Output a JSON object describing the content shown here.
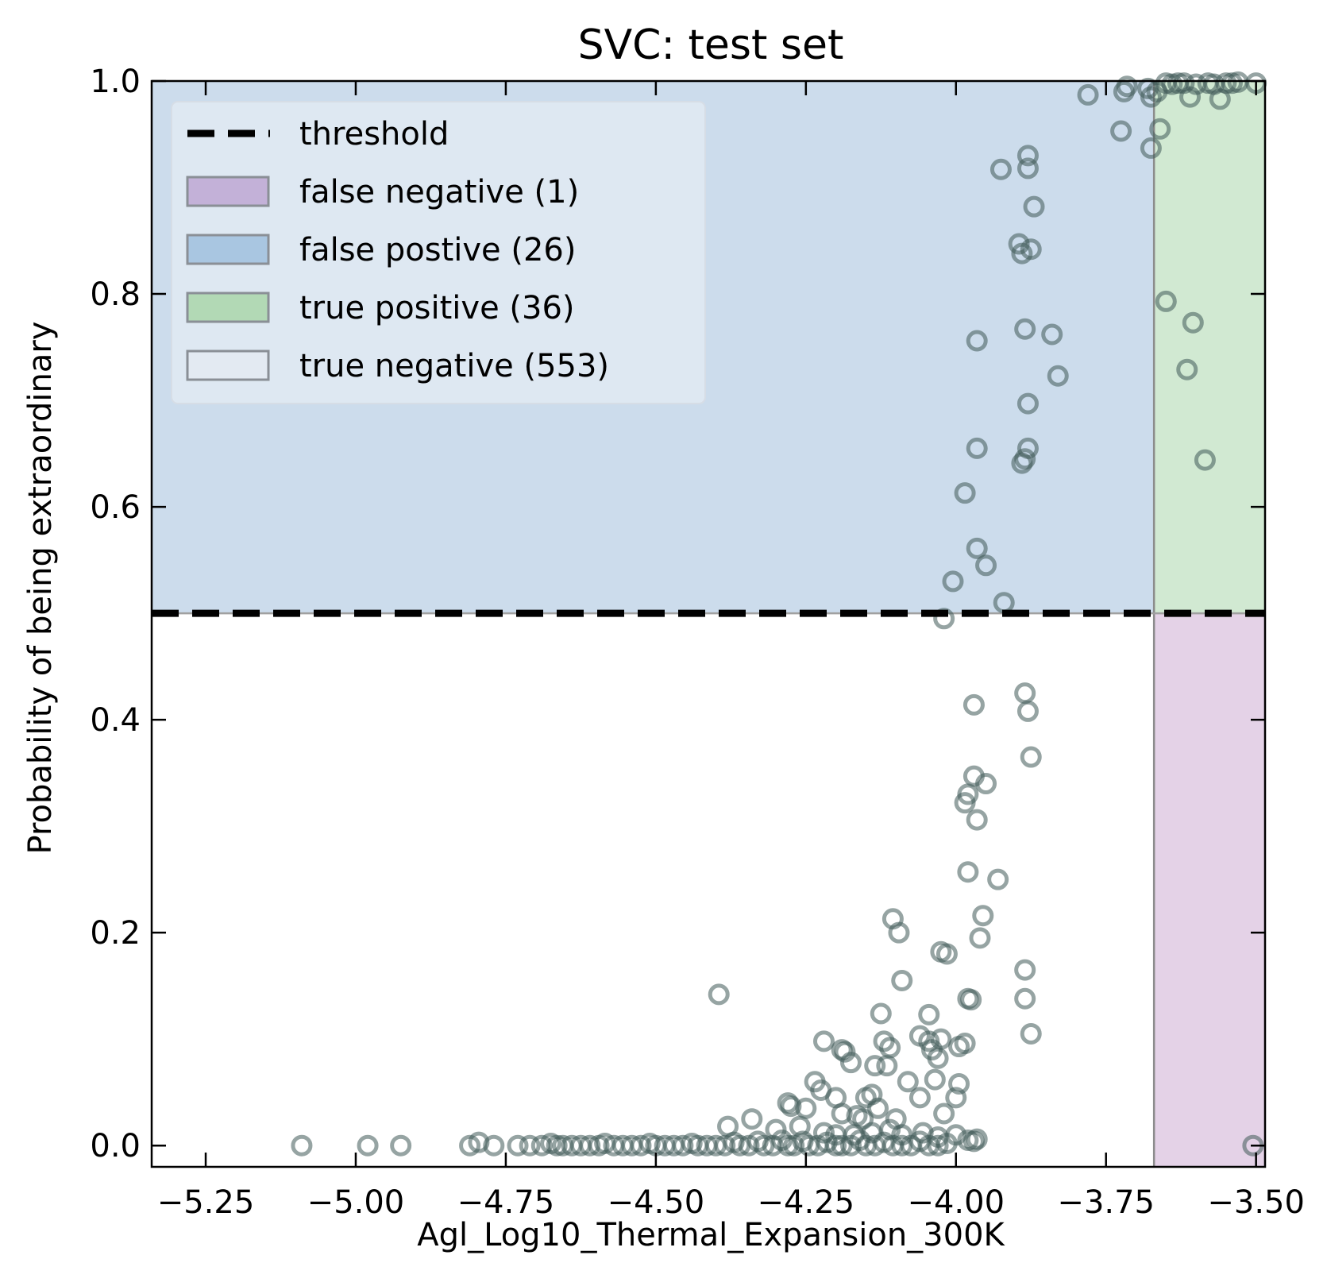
{
  "chart_data": {
    "type": "scatter",
    "title": "SVC: test set",
    "xlabel": "Agl_Log10_Thermal_Expansion_300K",
    "ylabel": "Probability of being extraordinary",
    "xlim": [
      -5.34,
      -3.485
    ],
    "ylim": [
      -0.02,
      1.0
    ],
    "xticks": [
      -5.25,
      -5.0,
      -4.75,
      -4.5,
      -4.25,
      -4.0,
      -3.75,
      -3.5
    ],
    "xtick_labels": [
      "−5.25",
      "−5.00",
      "−4.75",
      "−4.50",
      "−4.25",
      "−4.00",
      "−3.75",
      "−3.50"
    ],
    "yticks": [
      0.0,
      0.2,
      0.4,
      0.6,
      0.8,
      1.0
    ],
    "ytick_labels": [
      "0.0",
      "0.2",
      "0.4",
      "0.6",
      "0.8",
      "1.0"
    ],
    "threshold_y": 0.5,
    "threshold_x": -3.67,
    "grid": false,
    "legend_placement": "top-left",
    "legend": [
      {
        "name": "threshold",
        "kind": "line",
        "color": "#000000"
      },
      {
        "name": "false negative (1)",
        "kind": "patch",
        "color": "#c3b1d8"
      },
      {
        "name": "false postive (26)",
        "kind": "patch",
        "color": "#a9c6e1"
      },
      {
        "name": "true positive (36)",
        "kind": "patch",
        "color": "#b2d9b5"
      },
      {
        "name": "true negative (553)",
        "kind": "patch",
        "color": "#e3eaf2"
      }
    ],
    "regions": [
      {
        "name": "false postive",
        "x": [
          -5.34,
          -3.67
        ],
        "y": [
          0.5,
          1.0
        ],
        "color": "#ccdcec"
      },
      {
        "name": "true positive",
        "x": [
          -3.67,
          -3.485
        ],
        "y": [
          0.5,
          1.0
        ],
        "color": "#d1e9d2"
      },
      {
        "name": "false negative",
        "x": [
          -3.67,
          -3.485
        ],
        "y": [
          -0.02,
          0.5
        ],
        "color": "#e4d2e7"
      }
    ],
    "marker_color": "#3f5a58",
    "points": [
      [
        -3.78,
        0.987
      ],
      [
        -3.72,
        0.99
      ],
      [
        -3.715,
        0.995
      ],
      [
        -3.68,
        0.993
      ],
      [
        -3.675,
        0.985
      ],
      [
        -3.665,
        0.99
      ],
      [
        -3.65,
        0.998
      ],
      [
        -3.64,
        0.997
      ],
      [
        -3.63,
        0.998
      ],
      [
        -3.62,
        0.998
      ],
      [
        -3.61,
        0.985
      ],
      [
        -3.6,
        0.997
      ],
      [
        -3.58,
        0.998
      ],
      [
        -3.57,
        0.997
      ],
      [
        -3.56,
        0.983
      ],
      [
        -3.55,
        0.998
      ],
      [
        -3.54,
        0.998
      ],
      [
        -3.53,
        0.999
      ],
      [
        -3.5,
        0.998
      ],
      [
        -3.725,
        0.953
      ],
      [
        -3.66,
        0.955
      ],
      [
        -3.675,
        0.937
      ],
      [
        -3.925,
        0.917
      ],
      [
        -3.88,
        0.93
      ],
      [
        -3.88,
        0.918
      ],
      [
        -3.87,
        0.882
      ],
      [
        -3.895,
        0.847
      ],
      [
        -3.89,
        0.838
      ],
      [
        -3.875,
        0.842
      ],
      [
        -3.65,
        0.793
      ],
      [
        -3.605,
        0.773
      ],
      [
        -3.885,
        0.767
      ],
      [
        -3.84,
        0.762
      ],
      [
        -3.965,
        0.756
      ],
      [
        -3.615,
        0.729
      ],
      [
        -3.83,
        0.723
      ],
      [
        -3.88,
        0.697
      ],
      [
        -3.965,
        0.655
      ],
      [
        -3.88,
        0.655
      ],
      [
        -3.885,
        0.645
      ],
      [
        -3.89,
        0.641
      ],
      [
        -3.585,
        0.644
      ],
      [
        -3.985,
        0.613
      ],
      [
        -3.965,
        0.561
      ],
      [
        -3.95,
        0.545
      ],
      [
        -4.005,
        0.53
      ],
      [
        -3.92,
        0.51
      ],
      [
        -4.02,
        0.495
      ],
      [
        -3.885,
        0.425
      ],
      [
        -3.97,
        0.414
      ],
      [
        -3.88,
        0.408
      ],
      [
        -3.875,
        0.365
      ],
      [
        -3.97,
        0.347
      ],
      [
        -3.95,
        0.34
      ],
      [
        -3.98,
        0.33
      ],
      [
        -3.985,
        0.322
      ],
      [
        -3.965,
        0.306
      ],
      [
        -3.98,
        0.257
      ],
      [
        -3.93,
        0.25
      ],
      [
        -3.955,
        0.216
      ],
      [
        -4.105,
        0.213
      ],
      [
        -4.095,
        0.2
      ],
      [
        -3.96,
        0.195
      ],
      [
        -4.025,
        0.182
      ],
      [
        -4.015,
        0.18
      ],
      [
        -3.885,
        0.165
      ],
      [
        -4.09,
        0.155
      ],
      [
        -3.98,
        0.138
      ],
      [
        -3.975,
        0.137
      ],
      [
        -3.885,
        0.138
      ],
      [
        -4.395,
        0.142
      ],
      [
        -4.125,
        0.124
      ],
      [
        -4.045,
        0.123
      ],
      [
        -3.875,
        0.105
      ],
      [
        -4.06,
        0.103
      ],
      [
        -4.025,
        0.1
      ],
      [
        -4.045,
        0.098
      ],
      [
        -4.12,
        0.098
      ],
      [
        -4.11,
        0.092
      ],
      [
        -3.985,
        0.096
      ],
      [
        -3.995,
        0.093
      ],
      [
        -4.04,
        0.09
      ],
      [
        -4.03,
        0.082
      ],
      [
        -4.22,
        0.098
      ],
      [
        -4.19,
        0.09
      ],
      [
        -4.185,
        0.088
      ],
      [
        -4.175,
        0.078
      ],
      [
        -4.135,
        0.075
      ],
      [
        -4.115,
        0.075
      ],
      [
        -4.08,
        0.06
      ],
      [
        -4.035,
        0.062
      ],
      [
        -3.995,
        0.058
      ],
      [
        -4.235,
        0.06
      ],
      [
        -4.225,
        0.052
      ],
      [
        -4.2,
        0.045
      ],
      [
        -4.15,
        0.045
      ],
      [
        -4.14,
        0.048
      ],
      [
        -4.06,
        0.045
      ],
      [
        -4.0,
        0.045
      ],
      [
        -4.28,
        0.04
      ],
      [
        -4.275,
        0.037
      ],
      [
        -4.25,
        0.035
      ],
      [
        -4.19,
        0.03
      ],
      [
        -4.165,
        0.028
      ],
      [
        -4.155,
        0.025
      ],
      [
        -4.13,
        0.035
      ],
      [
        -4.1,
        0.025
      ],
      [
        -4.02,
        0.03
      ],
      [
        -4.34,
        0.025
      ],
      [
        -4.38,
        0.018
      ],
      [
        -4.3,
        0.015
      ],
      [
        -4.26,
        0.018
      ],
      [
        -4.22,
        0.012
      ],
      [
        -4.2,
        0.01
      ],
      [
        -4.17,
        0.01
      ],
      [
        -4.14,
        0.012
      ],
      [
        -4.11,
        0.015
      ],
      [
        -4.09,
        0.01
      ],
      [
        -4.055,
        0.012
      ],
      [
        -4.03,
        0.008
      ],
      [
        -4.0,
        0.01
      ],
      [
        -3.98,
        0.005
      ],
      [
        -3.97,
        0.004
      ],
      [
        -3.965,
        0.006
      ],
      [
        -5.09,
        0.0
      ],
      [
        -4.98,
        0.0
      ],
      [
        -4.925,
        0.0
      ],
      [
        -4.81,
        0.0
      ],
      [
        -4.795,
        0.003
      ],
      [
        -4.77,
        0.0
      ],
      [
        -4.73,
        0.0
      ],
      [
        -4.71,
        0.0
      ],
      [
        -4.69,
        0.0
      ],
      [
        -4.675,
        0.002
      ],
      [
        -4.665,
        0.0
      ],
      [
        -4.655,
        0.0
      ],
      [
        -4.64,
        0.0
      ],
      [
        -4.625,
        0.0
      ],
      [
        -4.61,
        0.0
      ],
      [
        -4.595,
        0.0
      ],
      [
        -4.585,
        0.002
      ],
      [
        -4.57,
        0.0
      ],
      [
        -4.555,
        0.0
      ],
      [
        -4.54,
        0.0
      ],
      [
        -4.525,
        0.0
      ],
      [
        -4.51,
        0.002
      ],
      [
        -4.5,
        0.0
      ],
      [
        -4.485,
        0.0
      ],
      [
        -4.47,
        0.0
      ],
      [
        -4.455,
        0.0
      ],
      [
        -4.44,
        0.002
      ],
      [
        -4.43,
        0.0
      ],
      [
        -4.415,
        0.0
      ],
      [
        -4.4,
        0.0
      ],
      [
        -4.385,
        0.0
      ],
      [
        -4.37,
        0.003
      ],
      [
        -4.36,
        0.0
      ],
      [
        -4.345,
        0.0
      ],
      [
        -4.33,
        0.004
      ],
      [
        -4.32,
        0.0
      ],
      [
        -4.305,
        0.0
      ],
      [
        -4.29,
        0.005
      ],
      [
        -4.28,
        0.0
      ],
      [
        -4.27,
        0.0
      ],
      [
        -4.255,
        0.004
      ],
      [
        -4.245,
        0.0
      ],
      [
        -4.23,
        0.0
      ],
      [
        -4.215,
        0.003
      ],
      [
        -4.2,
        0.0
      ],
      [
        -4.19,
        0.0
      ],
      [
        -4.175,
        0.0
      ],
      [
        -4.16,
        0.005
      ],
      [
        -4.15,
        0.0
      ],
      [
        -4.135,
        0.0
      ],
      [
        -4.12,
        0.003
      ],
      [
        -4.105,
        0.0
      ],
      [
        -4.09,
        0.0
      ],
      [
        -4.075,
        0.0
      ],
      [
        -4.06,
        0.004
      ],
      [
        -4.045,
        0.0
      ],
      [
        -4.03,
        0.0
      ],
      [
        -4.015,
        0.002
      ],
      [
        -3.505,
        0.0
      ]
    ]
  }
}
